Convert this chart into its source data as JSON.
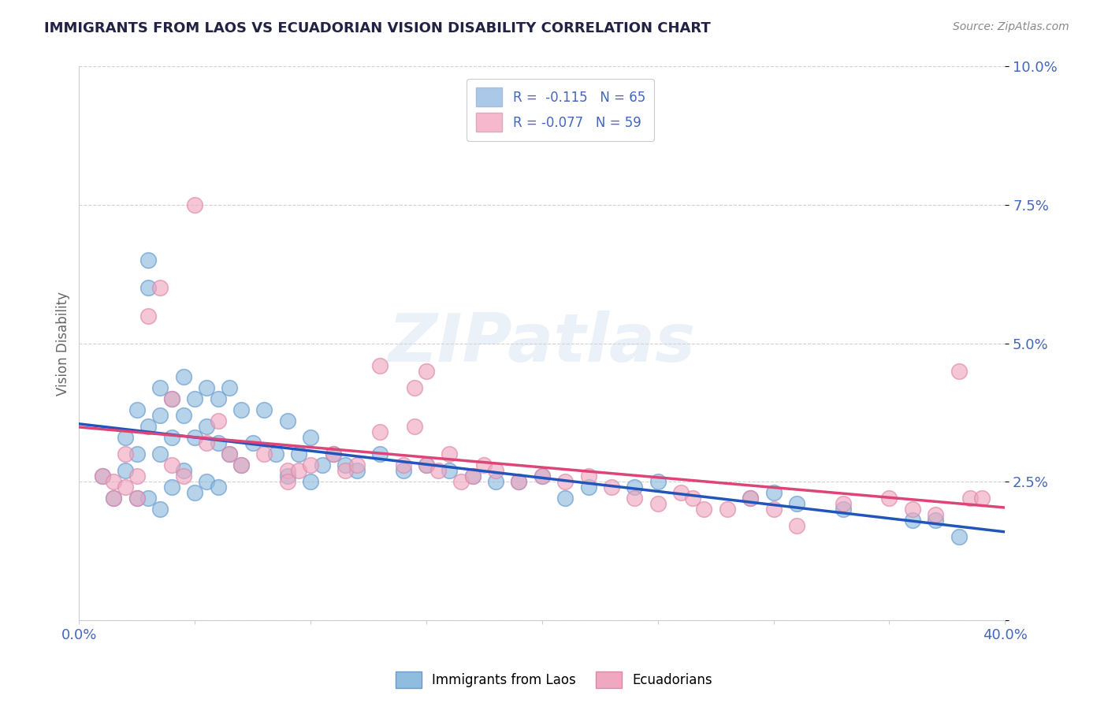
{
  "title": "IMMIGRANTS FROM LAOS VS ECUADORIAN VISION DISABILITY CORRELATION CHART",
  "source_text": "Source: ZipAtlas.com",
  "ylabel": "Vision Disability",
  "xlim": [
    0.0,
    0.4
  ],
  "ylim": [
    0.0,
    0.1
  ],
  "yticks": [
    0.0,
    0.025,
    0.05,
    0.075,
    0.1
  ],
  "ytick_labels": [
    "",
    "2.5%",
    "5.0%",
    "7.5%",
    "10.0%"
  ],
  "xticks": [
    0.0,
    0.05,
    0.1,
    0.15,
    0.2,
    0.25,
    0.3,
    0.35,
    0.4
  ],
  "xtick_labels_show": [
    "0.0%",
    "40.0%"
  ],
  "legend_label1": "R =  -0.115   N = 65",
  "legend_label2": "R = -0.077   N = 59",
  "legend_color1": "#aac8e8",
  "legend_color2": "#f5b8cc",
  "series1_color": "#90bce0",
  "series2_color": "#f0a8c0",
  "trend1_color": "#2255bb",
  "trend2_color": "#dd4477",
  "watermark": "ZIPatlas",
  "background_color": "#ffffff",
  "title_color": "#222244",
  "axis_label_color": "#4466bb",
  "grid_color": "#cccccc",
  "blue_scatter_x": [
    0.01,
    0.015,
    0.02,
    0.02,
    0.025,
    0.025,
    0.025,
    0.03,
    0.03,
    0.03,
    0.03,
    0.035,
    0.035,
    0.035,
    0.035,
    0.04,
    0.04,
    0.04,
    0.045,
    0.045,
    0.045,
    0.05,
    0.05,
    0.05,
    0.055,
    0.055,
    0.055,
    0.06,
    0.06,
    0.06,
    0.065,
    0.065,
    0.07,
    0.07,
    0.075,
    0.08,
    0.085,
    0.09,
    0.09,
    0.095,
    0.1,
    0.1,
    0.105,
    0.11,
    0.115,
    0.12,
    0.13,
    0.14,
    0.15,
    0.16,
    0.17,
    0.18,
    0.19,
    0.2,
    0.21,
    0.22,
    0.24,
    0.25,
    0.29,
    0.3,
    0.31,
    0.33,
    0.36,
    0.37,
    0.38
  ],
  "blue_scatter_y": [
    0.026,
    0.022,
    0.033,
    0.027,
    0.038,
    0.03,
    0.022,
    0.065,
    0.06,
    0.035,
    0.022,
    0.042,
    0.037,
    0.03,
    0.02,
    0.04,
    0.033,
    0.024,
    0.044,
    0.037,
    0.027,
    0.04,
    0.033,
    0.023,
    0.042,
    0.035,
    0.025,
    0.04,
    0.032,
    0.024,
    0.042,
    0.03,
    0.038,
    0.028,
    0.032,
    0.038,
    0.03,
    0.036,
    0.026,
    0.03,
    0.033,
    0.025,
    0.028,
    0.03,
    0.028,
    0.027,
    0.03,
    0.027,
    0.028,
    0.027,
    0.026,
    0.025,
    0.025,
    0.026,
    0.022,
    0.024,
    0.024,
    0.025,
    0.022,
    0.023,
    0.021,
    0.02,
    0.018,
    0.018,
    0.015
  ],
  "pink_scatter_x": [
    0.01,
    0.015,
    0.015,
    0.02,
    0.02,
    0.025,
    0.025,
    0.03,
    0.035,
    0.04,
    0.04,
    0.045,
    0.05,
    0.055,
    0.06,
    0.065,
    0.07,
    0.08,
    0.09,
    0.09,
    0.095,
    0.1,
    0.11,
    0.115,
    0.12,
    0.13,
    0.14,
    0.145,
    0.15,
    0.155,
    0.16,
    0.165,
    0.17,
    0.175,
    0.18,
    0.19,
    0.2,
    0.21,
    0.22,
    0.23,
    0.24,
    0.25,
    0.26,
    0.265,
    0.27,
    0.28,
    0.29,
    0.3,
    0.31,
    0.33,
    0.35,
    0.36,
    0.37,
    0.385,
    0.39,
    0.13,
    0.145,
    0.15,
    0.38
  ],
  "pink_scatter_y": [
    0.026,
    0.025,
    0.022,
    0.03,
    0.024,
    0.026,
    0.022,
    0.055,
    0.06,
    0.04,
    0.028,
    0.026,
    0.075,
    0.032,
    0.036,
    0.03,
    0.028,
    0.03,
    0.027,
    0.025,
    0.027,
    0.028,
    0.03,
    0.027,
    0.028,
    0.034,
    0.028,
    0.035,
    0.028,
    0.027,
    0.03,
    0.025,
    0.026,
    0.028,
    0.027,
    0.025,
    0.026,
    0.025,
    0.026,
    0.024,
    0.022,
    0.021,
    0.023,
    0.022,
    0.02,
    0.02,
    0.022,
    0.02,
    0.017,
    0.021,
    0.022,
    0.02,
    0.019,
    0.022,
    0.022,
    0.046,
    0.042,
    0.045,
    0.045
  ]
}
